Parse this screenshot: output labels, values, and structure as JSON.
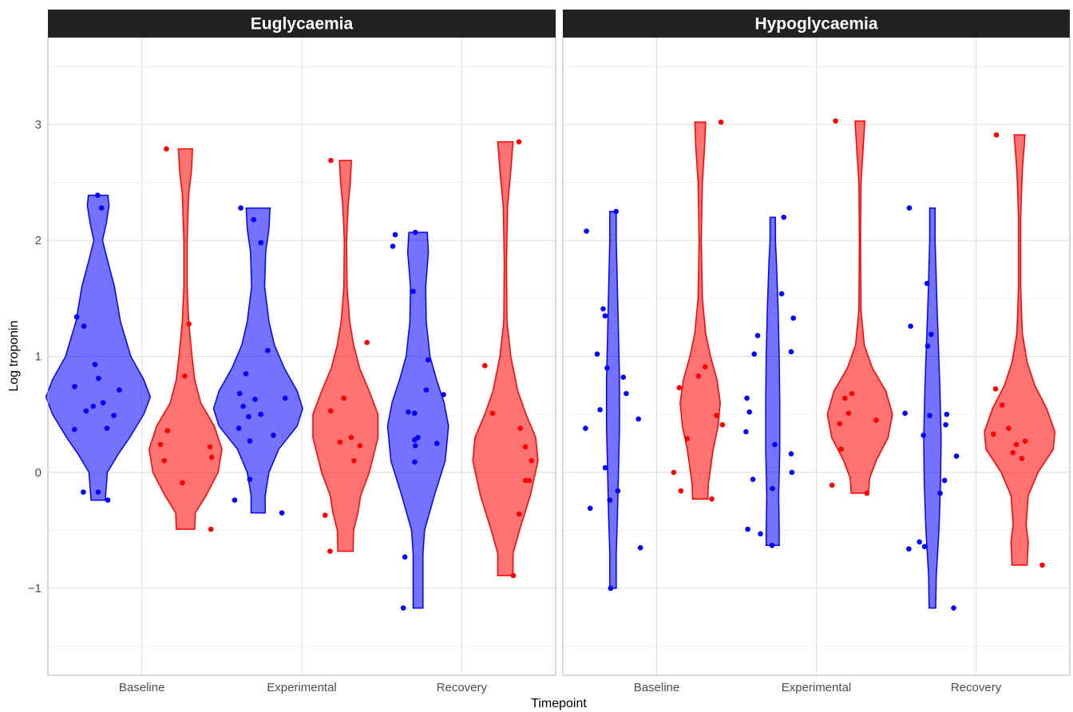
{
  "chart_data": {
    "type": "violin",
    "xlabel": "Timepoint",
    "ylabel": "Log troponin",
    "ylim": [
      -1.75,
      3.75
    ],
    "yticks": [
      -1,
      0,
      1,
      2,
      3
    ],
    "yticklabels": [
      "−1",
      "0",
      "1",
      "2",
      "3"
    ],
    "categories": [
      "Baseline",
      "Experimental",
      "Recovery"
    ],
    "grid": true,
    "legend": "none",
    "colors": {
      "blue": "#0000ff",
      "red": "#ff0000",
      "blue_fill": "#0000ff",
      "red_fill": "#ff0000"
    },
    "panels": [
      {
        "title": "Euglycaemia",
        "groups": [
          {
            "category": "Baseline",
            "color": "blue",
            "points": [
              2.39,
              2.28,
              1.34,
              1.26,
              0.93,
              0.81,
              0.74,
              0.71,
              0.6,
              0.57,
              0.53,
              0.49,
              0.38,
              0.37,
              -0.17,
              -0.17,
              -0.24
            ],
            "profile": [
              [
                -0.24,
                0.13
              ],
              [
                0.0,
                0.17
              ],
              [
                0.15,
                0.36
              ],
              [
                0.3,
                0.58
              ],
              [
                0.5,
                0.84
              ],
              [
                0.65,
                0.96
              ],
              [
                0.8,
                0.84
              ],
              [
                1.0,
                0.6
              ],
              [
                1.3,
                0.41
              ],
              [
                1.6,
                0.3
              ],
              [
                1.85,
                0.16
              ],
              [
                2.0,
                0.08
              ],
              [
                2.15,
                0.15
              ],
              [
                2.3,
                0.2
              ],
              [
                2.39,
                0.18
              ]
            ]
          },
          {
            "category": "Baseline",
            "color": "red",
            "points": [
              2.79,
              1.28,
              0.83,
              0.36,
              0.24,
              0.22,
              0.13,
              0.1,
              -0.09,
              -0.49
            ],
            "profile": [
              [
                -0.49,
                0.17
              ],
              [
                -0.35,
                0.18
              ],
              [
                -0.2,
                0.38
              ],
              [
                0.0,
                0.6
              ],
              [
                0.2,
                0.67
              ],
              [
                0.4,
                0.53
              ],
              [
                0.6,
                0.28
              ],
              [
                0.8,
                0.17
              ],
              [
                1.0,
                0.12
              ],
              [
                1.3,
                0.06
              ],
              [
                1.6,
                0.03
              ],
              [
                2.0,
                0.03
              ],
              [
                2.4,
                0.06
              ],
              [
                2.6,
                0.11
              ],
              [
                2.79,
                0.13
              ]
            ]
          },
          {
            "category": "Experimental",
            "color": "blue",
            "points": [
              2.28,
              2.18,
              1.98,
              1.05,
              0.85,
              0.68,
              0.64,
              0.63,
              0.57,
              0.5,
              0.48,
              0.38,
              0.32,
              0.27,
              -0.06,
              -0.24,
              -0.35
            ],
            "profile": [
              [
                -0.35,
                0.13
              ],
              [
                -0.2,
                0.13
              ],
              [
                0.0,
                0.2
              ],
              [
                0.2,
                0.38
              ],
              [
                0.4,
                0.72
              ],
              [
                0.55,
                0.82
              ],
              [
                0.7,
                0.72
              ],
              [
                0.9,
                0.48
              ],
              [
                1.1,
                0.3
              ],
              [
                1.3,
                0.2
              ],
              [
                1.6,
                0.12
              ],
              [
                1.9,
                0.14
              ],
              [
                2.1,
                0.2
              ],
              [
                2.28,
                0.22
              ]
            ]
          },
          {
            "category": "Experimental",
            "color": "red",
            "points": [
              2.69,
              1.12,
              0.64,
              0.53,
              0.3,
              0.26,
              0.23,
              0.1,
              -0.37,
              -0.68
            ],
            "profile": [
              [
                -0.68,
                0.14
              ],
              [
                -0.5,
                0.15
              ],
              [
                -0.35,
                0.23
              ],
              [
                -0.2,
                0.28
              ],
              [
                0.0,
                0.44
              ],
              [
                0.3,
                0.6
              ],
              [
                0.5,
                0.6
              ],
              [
                0.7,
                0.44
              ],
              [
                0.9,
                0.26
              ],
              [
                1.1,
                0.15
              ],
              [
                1.3,
                0.08
              ],
              [
                1.6,
                0.03
              ],
              [
                2.0,
                0.02
              ],
              [
                2.3,
                0.05
              ],
              [
                2.5,
                0.09
              ],
              [
                2.69,
                0.11
              ]
            ]
          },
          {
            "category": "Recovery",
            "color": "blue",
            "points": [
              2.07,
              2.05,
              1.95,
              1.56,
              0.97,
              0.71,
              0.67,
              0.52,
              0.51,
              0.3,
              0.28,
              0.25,
              0.23,
              0.09,
              -0.73,
              -1.17
            ],
            "profile": [
              [
                -1.17,
                0.09
              ],
              [
                -1.0,
                0.09
              ],
              [
                -0.7,
                0.09
              ],
              [
                -0.5,
                0.12
              ],
              [
                -0.2,
                0.3
              ],
              [
                0.1,
                0.5
              ],
              [
                0.4,
                0.56
              ],
              [
                0.6,
                0.48
              ],
              [
                0.8,
                0.34
              ],
              [
                1.0,
                0.22
              ],
              [
                1.3,
                0.15
              ],
              [
                1.6,
                0.14
              ],
              [
                1.9,
                0.19
              ],
              [
                2.07,
                0.17
              ]
            ]
          },
          {
            "category": "Recovery",
            "color": "red",
            "points": [
              2.85,
              0.92,
              0.51,
              0.38,
              0.22,
              0.1,
              -0.07,
              -0.07,
              -0.36,
              -0.89
            ],
            "profile": [
              [
                -0.89,
                0.14
              ],
              [
                -0.7,
                0.14
              ],
              [
                -0.5,
                0.26
              ],
              [
                -0.2,
                0.46
              ],
              [
                0.1,
                0.6
              ],
              [
                0.3,
                0.56
              ],
              [
                0.5,
                0.38
              ],
              [
                0.7,
                0.23
              ],
              [
                1.0,
                0.1
              ],
              [
                1.3,
                0.03
              ],
              [
                1.8,
                0.02
              ],
              [
                2.3,
                0.04
              ],
              [
                2.6,
                0.1
              ],
              [
                2.85,
                0.14
              ]
            ]
          }
        ]
      },
      {
        "title": "Hypoglycaemia",
        "groups": [
          {
            "category": "Baseline",
            "color": "blue",
            "points": [
              2.25,
              2.08,
              1.41,
              1.35,
              1.02,
              0.9,
              0.82,
              0.68,
              0.54,
              0.46,
              0.38,
              0.04,
              -0.16,
              -0.24,
              -0.31,
              -0.65,
              -1.0
            ],
            "profile": [
              [
                -1.0,
                0.06
              ],
              [
                -0.7,
                0.06
              ],
              [
                -0.4,
                0.08
              ],
              [
                0.0,
                0.1
              ],
              [
                0.4,
                0.12
              ],
              [
                0.8,
                0.12
              ],
              [
                1.2,
                0.1
              ],
              [
                1.6,
                0.08
              ],
              [
                2.0,
                0.06
              ],
              [
                2.25,
                0.06
              ]
            ]
          },
          {
            "category": "Baseline",
            "color": "red",
            "points": [
              3.02,
              0.91,
              0.83,
              0.73,
              0.49,
              0.41,
              0.29,
              0.0,
              -0.16,
              -0.23
            ],
            "profile": [
              [
                -0.23,
                0.14
              ],
              [
                -0.1,
                0.15
              ],
              [
                0.0,
                0.18
              ],
              [
                0.2,
                0.24
              ],
              [
                0.4,
                0.33
              ],
              [
                0.6,
                0.37
              ],
              [
                0.8,
                0.31
              ],
              [
                1.0,
                0.19
              ],
              [
                1.2,
                0.1
              ],
              [
                1.5,
                0.04
              ],
              [
                2.0,
                0.02
              ],
              [
                2.5,
                0.04
              ],
              [
                2.8,
                0.08
              ],
              [
                3.02,
                0.1
              ]
            ]
          },
          {
            "category": "Experimental",
            "color": "blue",
            "points": [
              2.2,
              1.54,
              1.33,
              1.18,
              1.04,
              1.02,
              0.64,
              0.52,
              0.35,
              0.24,
              0.16,
              0.0,
              -0.06,
              -0.14,
              -0.49,
              -0.53,
              -0.63
            ],
            "profile": [
              [
                -0.63,
                0.12
              ],
              [
                -0.5,
                0.12
              ],
              [
                -0.2,
                0.11
              ],
              [
                0.2,
                0.13
              ],
              [
                0.6,
                0.13
              ],
              [
                1.0,
                0.12
              ],
              [
                1.4,
                0.1
              ],
              [
                1.8,
                0.07
              ],
              [
                2.0,
                0.05
              ],
              [
                2.2,
                0.05
              ]
            ]
          },
          {
            "category": "Experimental",
            "color": "red",
            "points": [
              3.03,
              0.68,
              0.64,
              0.51,
              0.45,
              0.42,
              0.2,
              -0.11,
              -0.18
            ],
            "profile": [
              [
                -0.18,
                0.16
              ],
              [
                -0.05,
                0.18
              ],
              [
                0.1,
                0.3
              ],
              [
                0.3,
                0.52
              ],
              [
                0.5,
                0.6
              ],
              [
                0.7,
                0.48
              ],
              [
                0.9,
                0.23
              ],
              [
                1.1,
                0.08
              ],
              [
                1.4,
                0.02
              ],
              [
                2.0,
                0.01
              ],
              [
                2.5,
                0.02
              ],
              [
                2.8,
                0.06
              ],
              [
                3.03,
                0.09
              ]
            ]
          },
          {
            "category": "Recovery",
            "color": "blue",
            "points": [
              2.28,
              1.63,
              1.26,
              1.19,
              1.09,
              0.51,
              0.5,
              0.49,
              0.41,
              0.32,
              0.14,
              -0.07,
              -0.18,
              -0.6,
              -0.64,
              -0.66,
              -1.17
            ],
            "profile": [
              [
                -1.17,
                0.06
              ],
              [
                -0.9,
                0.07
              ],
              [
                -0.5,
                0.12
              ],
              [
                -0.1,
                0.15
              ],
              [
                0.3,
                0.16
              ],
              [
                0.7,
                0.14
              ],
              [
                1.1,
                0.11
              ],
              [
                1.5,
                0.08
              ],
              [
                2.0,
                0.05
              ],
              [
                2.28,
                0.05
              ]
            ]
          },
          {
            "category": "Recovery",
            "color": "red",
            "points": [
              2.91,
              0.72,
              0.58,
              0.38,
              0.33,
              0.27,
              0.24,
              0.17,
              0.12,
              -0.8
            ],
            "profile": [
              [
                -0.8,
                0.14
              ],
              [
                -0.6,
                0.16
              ],
              [
                -0.45,
                0.12
              ],
              [
                -0.2,
                0.16
              ],
              [
                0.0,
                0.34
              ],
              [
                0.2,
                0.62
              ],
              [
                0.35,
                0.65
              ],
              [
                0.55,
                0.5
              ],
              [
                0.75,
                0.28
              ],
              [
                0.95,
                0.14
              ],
              [
                1.2,
                0.05
              ],
              [
                1.6,
                0.02
              ],
              [
                2.2,
                0.02
              ],
              [
                2.6,
                0.05
              ],
              [
                2.91,
                0.1
              ]
            ]
          }
        ]
      }
    ]
  }
}
